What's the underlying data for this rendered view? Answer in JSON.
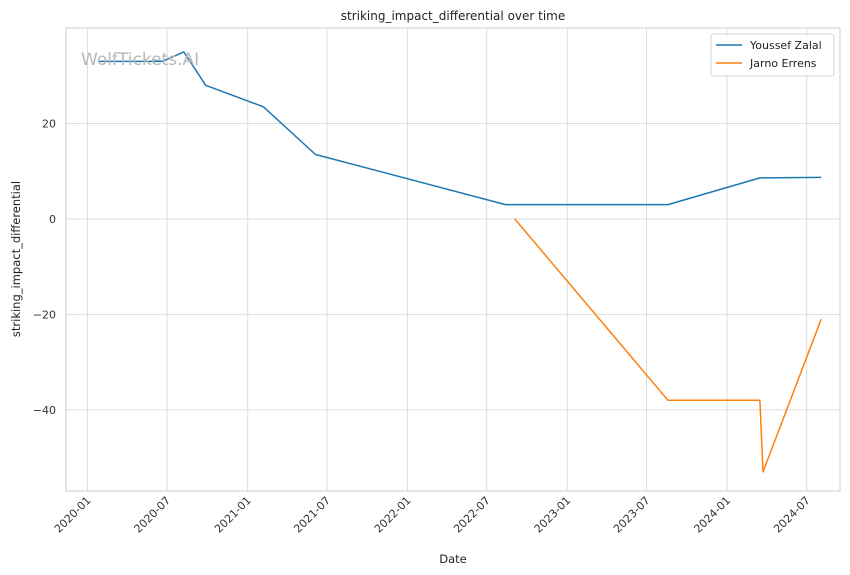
{
  "chart_data": {
    "type": "line",
    "title": "striking_impact_differential over time",
    "xlabel": "Date",
    "ylabel": "striking_impact_differential",
    "watermark": "WolfTickets.AI",
    "x_ticks": [
      "2020-01",
      "2020-07",
      "2021-01",
      "2021-07",
      "2022-01",
      "2022-07",
      "2023-01",
      "2023-07",
      "2024-01",
      "2024-07"
    ],
    "y_ticks": [
      -40,
      -20,
      0,
      20
    ],
    "xlim": [
      "2019-11-13",
      "2024-09-15"
    ],
    "ylim": [
      -57,
      40
    ],
    "grid": true,
    "legend_position": "top-right",
    "series": [
      {
        "name": "Youssef Zalal",
        "color": "#1f77b4",
        "points": [
          {
            "x": "2020-01-25",
            "y": 33.0
          },
          {
            "x": "2020-06-20",
            "y": 33.0
          },
          {
            "x": "2020-08-08",
            "y": 35.0
          },
          {
            "x": "2020-09-27",
            "y": 28.0
          },
          {
            "x": "2021-02-06",
            "y": 23.5
          },
          {
            "x": "2021-06-05",
            "y": 13.5
          },
          {
            "x": "2022-08-13",
            "y": 3.0
          },
          {
            "x": "2023-08-19",
            "y": 3.0
          },
          {
            "x": "2024-03-16",
            "y": 8.6
          },
          {
            "x": "2024-08-03",
            "y": 8.7
          }
        ]
      },
      {
        "name": "Jarno Errens",
        "color": "#ff7f0e",
        "points": [
          {
            "x": "2022-09-03",
            "y": 0.0
          },
          {
            "x": "2023-08-19",
            "y": -38.0
          },
          {
            "x": "2024-03-16",
            "y": -38.0
          },
          {
            "x": "2024-03-23",
            "y": -53.0
          },
          {
            "x": "2024-08-03",
            "y": -21.0
          }
        ]
      }
    ]
  }
}
